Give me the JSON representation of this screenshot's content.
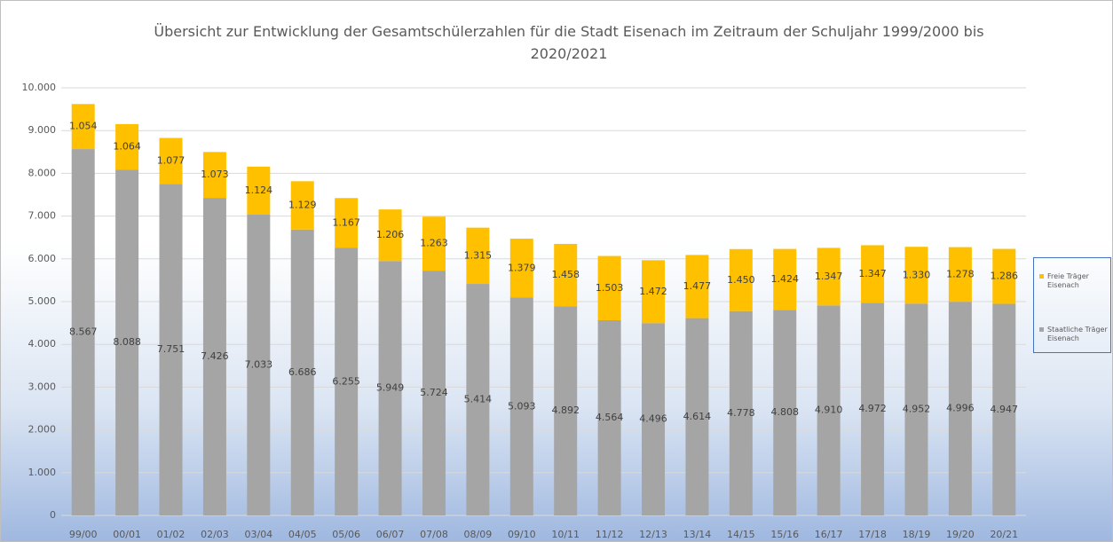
{
  "chart_data": {
    "type": "stacked-bar",
    "title": "Übersicht zur Entwicklung der Gesamtschülerzahlen für die Stadt Eisenach im Zeitraum der Schuljahr 1999/2000 bis 2020/2021",
    "categories": [
      "99/00",
      "00/01",
      "01/02",
      "02/03",
      "03/04",
      "04/05",
      "05/06",
      "06/07",
      "07/08",
      "08/09",
      "09/10",
      "10/11",
      "11/12",
      "12/13",
      "13/14",
      "14/15",
      "15/16",
      "16/17",
      "17/18",
      "18/19",
      "19/20",
      "20/21"
    ],
    "series": [
      {
        "name": "Staatliche Träger Eisenach",
        "color": "#a5a5a5",
        "values": [
          8567,
          8088,
          7751,
          7426,
          7033,
          6686,
          6255,
          5949,
          5724,
          5414,
          5093,
          4892,
          4564,
          4496,
          4614,
          4778,
          4808,
          4910,
          4972,
          4952,
          4996,
          4947
        ],
        "value_labels": [
          "8.567",
          "8.088",
          "7.751",
          "7.426",
          "7.033",
          "6.686",
          "6.255",
          "5.949",
          "5.724",
          "5.414",
          "5.093",
          "4.892",
          "4.564",
          "4.496",
          "4.614",
          "4.778",
          "4.808",
          "4.910",
          "4.972",
          "4.952",
          "4.996",
          "4.947"
        ]
      },
      {
        "name": "Freie Träger Eisenach",
        "color": "#ffc000",
        "values": [
          1054,
          1064,
          1077,
          1073,
          1124,
          1129,
          1167,
          1206,
          1263,
          1315,
          1379,
          1458,
          1503,
          1472,
          1477,
          1450,
          1424,
          1347,
          1347,
          1330,
          1278,
          1286
        ],
        "value_labels": [
          "1.054",
          "1.064",
          "1.077",
          "1.073",
          "1.124",
          "1.129",
          "1.167",
          "1.206",
          "1.263",
          "1.315",
          "1.379",
          "1.458",
          "1.503",
          "1.472",
          "1.477",
          "1.450",
          "1.424",
          "1.347",
          "1.347",
          "1.330",
          "1.278",
          "1.286"
        ]
      }
    ],
    "ylim": [
      0,
      10000
    ],
    "yticks": [
      0,
      {
        "value": 1000,
        "label": "1.000"
      },
      {
        "value": 2000,
        "label": "2.000"
      },
      {
        "value": 3000,
        "label": "3.000"
      },
      {
        "value": 4000,
        "label": "4.000"
      },
      {
        "value": 5000,
        "label": "5.000"
      },
      {
        "value": 6000,
        "label": "6.000"
      },
      {
        "value": 7000,
        "label": "7.000"
      },
      {
        "value": 8000,
        "label": "8.000"
      },
      {
        "value": 9000,
        "label": "9.000"
      },
      {
        "value": 10000,
        "label": "10.000"
      }
    ],
    "grid": true,
    "legend": "right"
  }
}
